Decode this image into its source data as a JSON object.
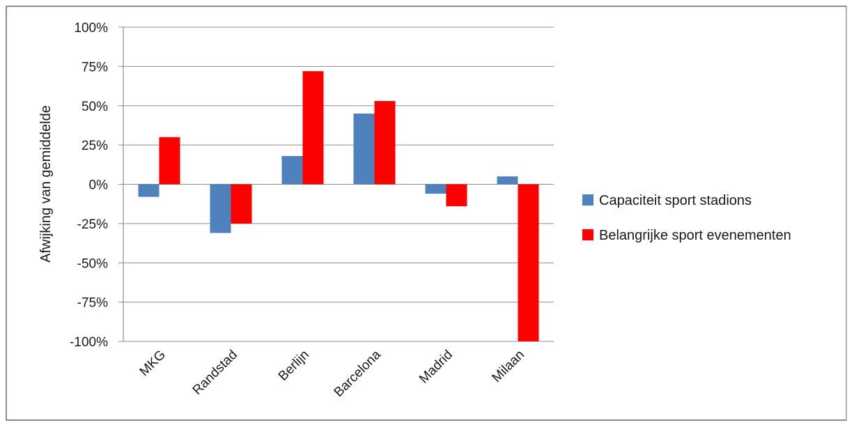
{
  "chart_data": {
    "type": "bar",
    "categories": [
      "MKG",
      "Randstad",
      "Berlijn",
      "Barcelona",
      "Madrid",
      "Milaan"
    ],
    "series": [
      {
        "name": "Capaciteit sport stadions",
        "color": "#4f81bd",
        "values": [
          -8,
          -31,
          18,
          45,
          -6,
          5
        ]
      },
      {
        "name": "Belangrijke sport evenementen",
        "color": "#ff0000",
        "values": [
          30,
          -25,
          72,
          53,
          -14,
          -100
        ]
      }
    ],
    "title": "",
    "xlabel": "",
    "ylabel": "Afwijking van  gemiddelde",
    "ylim": [
      -100,
      100
    ],
    "yticks": [
      100,
      75,
      50,
      25,
      0,
      -25,
      -50,
      -75,
      -100
    ],
    "ytick_labels": [
      "100%",
      "75%",
      "50%",
      "25%",
      "0%",
      "-25%",
      "-50%",
      "-75%",
      "-100%"
    ],
    "grid": true,
    "legend_position": "right"
  }
}
